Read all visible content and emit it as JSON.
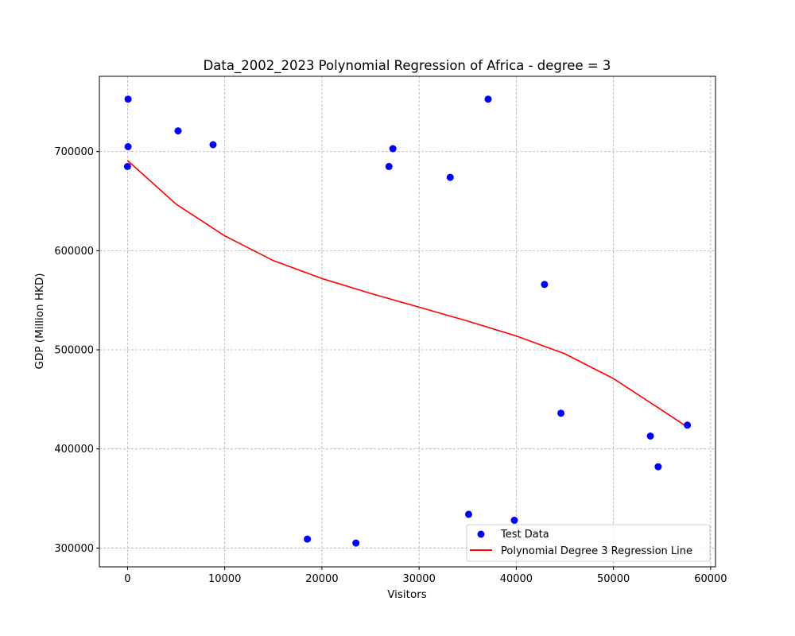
{
  "chart_data": {
    "type": "scatter",
    "title": "Data_2002_2023 Polynomial Regression of Africa - degree = 3",
    "xlabel": "Visitors",
    "ylabel": "GDP (Million HKD)",
    "xlim": [
      -2900,
      60500
    ],
    "ylim": [
      281000,
      776000
    ],
    "x_ticks": [
      0,
      10000,
      20000,
      30000,
      40000,
      50000,
      60000
    ],
    "y_ticks": [
      300000,
      400000,
      500000,
      600000,
      700000
    ],
    "x_tick_labels": [
      "0",
      "10000",
      "20000",
      "30000",
      "40000",
      "50000",
      "60000"
    ],
    "y_tick_labels": [
      "300000",
      "400000",
      "500000",
      "600000",
      "700000"
    ],
    "grid": true,
    "legend_position": "lower-right",
    "series": [
      {
        "name": "Test Data",
        "kind": "scatter",
        "color": "#0000ff",
        "x": [
          50,
          50,
          0,
          5200,
          8800,
          18500,
          23500,
          26900,
          27300,
          33200,
          35100,
          37100,
          39800,
          42900,
          44600,
          53800,
          54600,
          57600
        ],
        "y": [
          753000,
          705000,
          685000,
          721000,
          707000,
          309000,
          305000,
          685000,
          703000,
          674000,
          334000,
          753000,
          328000,
          566000,
          436000,
          413000,
          382000,
          424000
        ]
      },
      {
        "name": "Polynomial Degree 3 Regression Line",
        "kind": "line",
        "color": "#ff0000",
        "x": [
          0,
          5000,
          10000,
          15000,
          20000,
          25000,
          30000,
          35000,
          40000,
          45000,
          50000,
          55000,
          57600
        ],
        "y": [
          691000,
          647000,
          615000,
          590000,
          572000,
          557000,
          543000,
          529000,
          514000,
          496000,
          471000,
          439000,
          422000
        ]
      }
    ]
  }
}
